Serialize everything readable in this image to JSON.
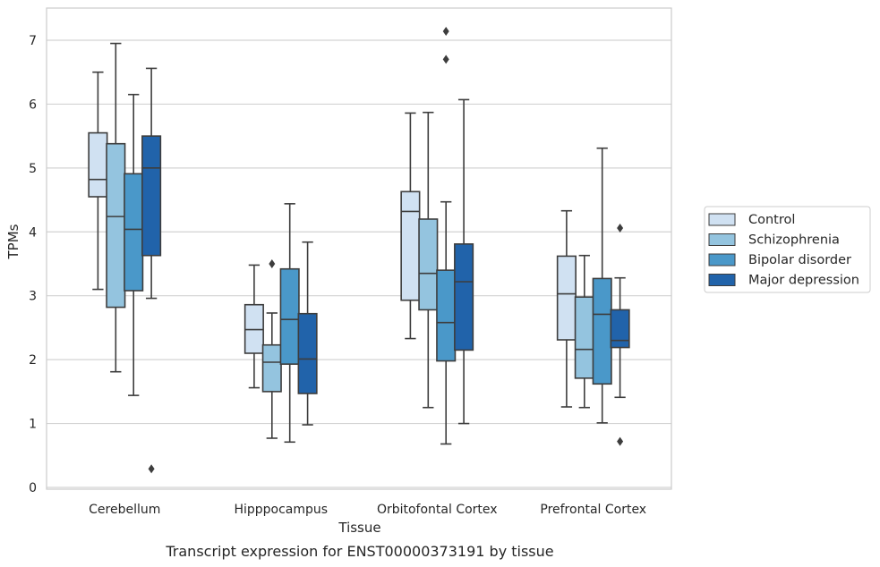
{
  "caption": "Transcript expression for ENST00000373191 by tissue",
  "chart_data": {
    "type": "box",
    "title": "",
    "xlabel": "Tissue",
    "ylabel": "TPMs",
    "ylim": [
      -0.05,
      7.5
    ],
    "yticks": [
      0,
      1,
      2,
      3,
      4,
      5,
      6,
      7
    ],
    "grid": "horizontal",
    "legend_position": "right",
    "categories": [
      "Cerebellum",
      "Hipppocampus",
      "Orbitofontal Cortex",
      "Prefrontal Cortex"
    ],
    "series": [
      {
        "name": "Control",
        "color": "#d0e1f2",
        "boxes": [
          {
            "whisker_low": 3.1,
            "q1": 4.55,
            "median": 4.82,
            "q3": 5.55,
            "whisker_high": 6.5,
            "outliers": []
          },
          {
            "whisker_low": 1.56,
            "q1": 2.1,
            "median": 2.47,
            "q3": 2.86,
            "whisker_high": 3.48,
            "outliers": []
          },
          {
            "whisker_low": 2.33,
            "q1": 2.93,
            "median": 4.32,
            "q3": 4.63,
            "whisker_high": 5.86,
            "outliers": []
          },
          {
            "whisker_low": 1.26,
            "q1": 2.31,
            "median": 3.03,
            "q3": 3.62,
            "whisker_high": 4.33,
            "outliers": []
          }
        ]
      },
      {
        "name": "Schizophrenia",
        "color": "#94c4df",
        "boxes": [
          {
            "whisker_low": 1.81,
            "q1": 2.82,
            "median": 4.24,
            "q3": 5.38,
            "whisker_high": 6.95,
            "outliers": []
          },
          {
            "whisker_low": 0.77,
            "q1": 1.5,
            "median": 1.96,
            "q3": 2.23,
            "whisker_high": 2.73,
            "outliers": [
              3.5
            ]
          },
          {
            "whisker_low": 1.25,
            "q1": 2.78,
            "median": 3.35,
            "q3": 4.2,
            "whisker_high": 5.87,
            "outliers": []
          },
          {
            "whisker_low": 1.25,
            "q1": 1.71,
            "median": 2.16,
            "q3": 2.98,
            "whisker_high": 3.63,
            "outliers": []
          }
        ]
      },
      {
        "name": "Bipolar disorder",
        "color": "#4a98c9",
        "boxes": [
          {
            "whisker_low": 1.44,
            "q1": 3.08,
            "median": 4.04,
            "q3": 4.91,
            "whisker_high": 6.15,
            "outliers": []
          },
          {
            "whisker_low": 0.71,
            "q1": 1.93,
            "median": 2.63,
            "q3": 3.42,
            "whisker_high": 4.44,
            "outliers": []
          },
          {
            "whisker_low": 0.68,
            "q1": 1.98,
            "median": 2.58,
            "q3": 3.4,
            "whisker_high": 4.47,
            "outliers": [
              6.7,
              7.14
            ]
          },
          {
            "whisker_low": 1.01,
            "q1": 1.62,
            "median": 2.71,
            "q3": 3.27,
            "whisker_high": 5.31,
            "outliers": []
          }
        ]
      },
      {
        "name": "Major depression",
        "color": "#2163aa",
        "boxes": [
          {
            "whisker_low": 2.96,
            "q1": 3.63,
            "median": 5.0,
            "q3": 5.5,
            "whisker_high": 6.56,
            "outliers": [
              0.29
            ]
          },
          {
            "whisker_low": 0.98,
            "q1": 1.47,
            "median": 2.01,
            "q3": 2.72,
            "whisker_high": 3.84,
            "outliers": []
          },
          {
            "whisker_low": 1.0,
            "q1": 2.15,
            "median": 3.22,
            "q3": 3.81,
            "whisker_high": 6.07,
            "outliers": []
          },
          {
            "whisker_low": 1.41,
            "q1": 2.19,
            "median": 2.3,
            "q3": 2.78,
            "whisker_high": 3.28,
            "outliers": [
              4.06,
              0.72
            ]
          }
        ]
      }
    ]
  }
}
